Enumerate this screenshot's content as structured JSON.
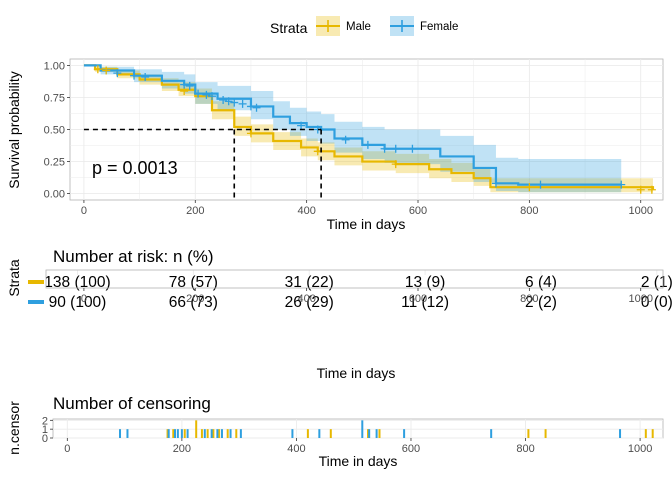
{
  "colors": {
    "male": "#E7B800",
    "female": "#2E9FDF",
    "grid": "#EBEBEB",
    "panel_border": "#B3B3B3"
  },
  "legend": {
    "title": "Strata",
    "items": [
      {
        "label": "Male",
        "color": "#E7B800"
      },
      {
        "label": "Female",
        "color": "#2E9FDF"
      }
    ]
  },
  "chart_data": [
    {
      "type": "line",
      "name": "survival-curve",
      "xlabel": "Time in days",
      "ylabel": "Survival probability",
      "xlim": [
        -25,
        1040
      ],
      "ylim": [
        -0.05,
        1.05
      ],
      "xticks": [
        "0",
        "200",
        "400",
        "600",
        "800",
        "1000"
      ],
      "yticks": [
        "0.00",
        "0.25",
        "0.50",
        "0.75",
        "1.00"
      ],
      "annotation": "p = 0.0013",
      "median_line": {
        "y": 0.5,
        "x_male": 270,
        "x_female": 426
      },
      "series": [
        {
          "name": "Male",
          "color": "#E7B800",
          "points": [
            [
              0,
              1.0
            ],
            [
              20,
              0.97
            ],
            [
              60,
              0.93
            ],
            [
              100,
              0.89
            ],
            [
              140,
              0.85
            ],
            [
              170,
              0.81
            ],
            [
              200,
              0.76
            ],
            [
              230,
              0.65
            ],
            [
              270,
              0.52
            ],
            [
              300,
              0.47
            ],
            [
              340,
              0.41
            ],
            [
              390,
              0.36
            ],
            [
              420,
              0.33
            ],
            [
              450,
              0.29
            ],
            [
              500,
              0.25
            ],
            [
              560,
              0.23
            ],
            [
              620,
              0.19
            ],
            [
              660,
              0.16
            ],
            [
              700,
              0.12
            ],
            [
              730,
              0.05
            ],
            [
              800,
              0.05
            ],
            [
              1022,
              0.03
            ]
          ],
          "lower": [
            [
              0,
              1.0
            ],
            [
              20,
              0.95
            ],
            [
              60,
              0.9
            ],
            [
              100,
              0.85
            ],
            [
              140,
              0.8
            ],
            [
              170,
              0.76
            ],
            [
              200,
              0.7
            ],
            [
              230,
              0.58
            ],
            [
              270,
              0.45
            ],
            [
              300,
              0.4
            ],
            [
              340,
              0.34
            ],
            [
              390,
              0.29
            ],
            [
              420,
              0.26
            ],
            [
              450,
              0.22
            ],
            [
              500,
              0.18
            ],
            [
              560,
              0.16
            ],
            [
              620,
              0.12
            ],
            [
              660,
              0.09
            ],
            [
              700,
              0.06
            ],
            [
              730,
              0.01
            ],
            [
              800,
              0.01
            ],
            [
              1022,
              0.0
            ]
          ],
          "upper": [
            [
              0,
              1.0
            ],
            [
              20,
              0.99
            ],
            [
              60,
              0.96
            ],
            [
              100,
              0.93
            ],
            [
              140,
              0.9
            ],
            [
              170,
              0.87
            ],
            [
              200,
              0.82
            ],
            [
              230,
              0.72
            ],
            [
              270,
              0.6
            ],
            [
              300,
              0.54
            ],
            [
              340,
              0.48
            ],
            [
              390,
              0.43
            ],
            [
              420,
              0.4
            ],
            [
              450,
              0.36
            ],
            [
              500,
              0.33
            ],
            [
              560,
              0.31
            ],
            [
              620,
              0.27
            ],
            [
              660,
              0.24
            ],
            [
              700,
              0.2
            ],
            [
              730,
              0.12
            ],
            [
              800,
              0.12
            ],
            [
              1022,
              0.1
            ]
          ]
        },
        {
          "name": "Female",
          "color": "#2E9FDF",
          "points": [
            [
              0,
              1.0
            ],
            [
              30,
              0.96
            ],
            [
              90,
              0.92
            ],
            [
              140,
              0.88
            ],
            [
              180,
              0.85
            ],
            [
              200,
              0.78
            ],
            [
              240,
              0.74
            ],
            [
              300,
              0.68
            ],
            [
              340,
              0.6
            ],
            [
              370,
              0.55
            ],
            [
              400,
              0.52
            ],
            [
              426,
              0.5
            ],
            [
              450,
              0.43
            ],
            [
              500,
              0.38
            ],
            [
              540,
              0.35
            ],
            [
              600,
              0.35
            ],
            [
              640,
              0.29
            ],
            [
              700,
              0.2
            ],
            [
              740,
              0.08
            ],
            [
              780,
              0.07
            ],
            [
              965,
              0.07
            ]
          ],
          "lower": [
            [
              0,
              1.0
            ],
            [
              30,
              0.93
            ],
            [
              90,
              0.87
            ],
            [
              140,
              0.82
            ],
            [
              180,
              0.78
            ],
            [
              200,
              0.7
            ],
            [
              240,
              0.65
            ],
            [
              300,
              0.58
            ],
            [
              340,
              0.5
            ],
            [
              370,
              0.45
            ],
            [
              400,
              0.41
            ],
            [
              426,
              0.39
            ],
            [
              450,
              0.32
            ],
            [
              500,
              0.27
            ],
            [
              540,
              0.24
            ],
            [
              600,
              0.23
            ],
            [
              640,
              0.17
            ],
            [
              700,
              0.09
            ],
            [
              740,
              0.02
            ],
            [
              780,
              0.01
            ],
            [
              965,
              0.01
            ]
          ],
          "upper": [
            [
              0,
              1.0
            ],
            [
              30,
              0.99
            ],
            [
              90,
              0.97
            ],
            [
              140,
              0.95
            ],
            [
              180,
              0.93
            ],
            [
              200,
              0.87
            ],
            [
              240,
              0.84
            ],
            [
              300,
              0.8
            ],
            [
              340,
              0.72
            ],
            [
              370,
              0.67
            ],
            [
              400,
              0.64
            ],
            [
              426,
              0.62
            ],
            [
              450,
              0.56
            ],
            [
              500,
              0.52
            ],
            [
              540,
              0.5
            ],
            [
              600,
              0.5
            ],
            [
              640,
              0.45
            ],
            [
              700,
              0.38
            ],
            [
              740,
              0.28
            ],
            [
              780,
              0.27
            ],
            [
              965,
              0.27
            ]
          ]
        }
      ],
      "censor_marks": {
        "Male": [
          [
            25,
            0.97
          ],
          [
            40,
            0.96
          ],
          [
            180,
            0.8
          ],
          [
            300,
            0.47
          ],
          [
            420,
            0.33
          ],
          [
            560,
            0.23
          ],
          [
            800,
            0.05
          ],
          [
            1000,
            0.03
          ],
          [
            1020,
            0.03
          ]
        ],
        "Female": [
          [
            60,
            0.94
          ],
          [
            90,
            0.92
          ],
          [
            110,
            0.91
          ],
          [
            180,
            0.85
          ],
          [
            190,
            0.84
          ],
          [
            205,
            0.78
          ],
          [
            220,
            0.77
          ],
          [
            230,
            0.76
          ],
          [
            250,
            0.73
          ],
          [
            260,
            0.72
          ],
          [
            270,
            0.71
          ],
          [
            285,
            0.7
          ],
          [
            300,
            0.68
          ],
          [
            310,
            0.67
          ],
          [
            390,
            0.53
          ],
          [
            420,
            0.5
          ],
          [
            470,
            0.42
          ],
          [
            510,
            0.38
          ],
          [
            540,
            0.35
          ],
          [
            560,
            0.35
          ],
          [
            590,
            0.35
          ],
          [
            740,
            0.08
          ],
          [
            820,
            0.07
          ],
          [
            965,
            0.07
          ]
        ]
      }
    },
    {
      "type": "table",
      "name": "risk-table",
      "title": "Number at risk: n (%)",
      "ylabel": "Strata",
      "xlabel": "Time in days",
      "xticks": [
        "0",
        "200",
        "400",
        "600",
        "800",
        "1000"
      ],
      "times": [
        0,
        200,
        400,
        600,
        800,
        1000
      ],
      "rows": [
        {
          "name": "Male",
          "color": "#E7B800",
          "cells": [
            "138 (100)",
            "78 (57)",
            "31 (22)",
            "13 (9)",
            "6 (4)",
            "2 (1)"
          ]
        },
        {
          "name": "Female",
          "color": "#2E9FDF",
          "cells": [
            "90 (100)",
            "66 (73)",
            "26 (29)",
            "11 (12)",
            "2 (2)",
            "0 (0)"
          ]
        }
      ]
    },
    {
      "type": "bar",
      "name": "censoring-plot",
      "title": "Number of censoring",
      "ylabel": "n.censor",
      "xlabel": "Time in days",
      "xticks": [
        "0",
        "200",
        "400",
        "600",
        "800",
        "1000"
      ],
      "yticks": [
        "0",
        "1",
        "2"
      ],
      "ylim": [
        0,
        2.15
      ],
      "series": [
        {
          "name": "Male",
          "color": "#E7B800",
          "events": [
            [
              175,
              1
            ],
            [
              185,
              1
            ],
            [
              205,
              1
            ],
            [
              225,
              2
            ],
            [
              235,
              1
            ],
            [
              245,
              1
            ],
            [
              255,
              1
            ],
            [
              265,
              1
            ],
            [
              280,
              1
            ],
            [
              295,
              1
            ],
            [
              420,
              1
            ],
            [
              460,
              1
            ],
            [
              525,
              1
            ],
            [
              545,
              1
            ],
            [
              805,
              1
            ],
            [
              835,
              1
            ],
            [
              1010,
              1
            ],
            [
              1022,
              1
            ]
          ]
        },
        {
          "name": "Female",
          "color": "#2E9FDF",
          "events": [
            [
              92,
              1
            ],
            [
              105,
              1
            ],
            [
              177,
              1
            ],
            [
              188,
              1
            ],
            [
              193,
              1
            ],
            [
              200,
              1
            ],
            [
              210,
              1
            ],
            [
              240,
              1
            ],
            [
              252,
              1
            ],
            [
              262,
              1
            ],
            [
              270,
              1
            ],
            [
              285,
              1
            ],
            [
              303,
              1
            ],
            [
              393,
              1
            ],
            [
              440,
              1
            ],
            [
              515,
              2
            ],
            [
              527,
              1
            ],
            [
              540,
              1
            ],
            [
              588,
              1
            ],
            [
              740,
              1
            ],
            [
              965,
              1
            ]
          ]
        }
      ]
    }
  ]
}
